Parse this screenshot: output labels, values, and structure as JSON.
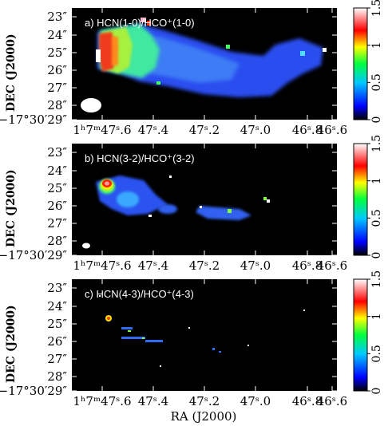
{
  "chart_data": [
    {
      "type": "heatmap",
      "title": "a) HCN(1-0)/HCO⁺(1-0)",
      "ylabel": "DEC (J2000)",
      "xlabel": "",
      "y_ticks": [
        "23″",
        "24″",
        "25″",
        "26″",
        "27″",
        "28″",
        "−17°30′29″"
      ],
      "x_ticks": [
        "1ʰ7ᵐ47ˢ.6",
        "47ˢ.4",
        "47ˢ.2",
        "47ˢ.0",
        "46ˢ.8",
        "46ˢ.6"
      ],
      "colorbar_ticks": [
        "0",
        "0.5",
        "1",
        "1.5"
      ],
      "colorbar_range": [
        0,
        1.5
      ],
      "beam": "large",
      "colormap": [
        "#000000",
        "#0000ff",
        "#00c8ff",
        "#00ff40",
        "#ffff00",
        "#ff0000",
        "#ffffff"
      ]
    },
    {
      "type": "heatmap",
      "title": "b) HCN(3-2)/HCO⁺(3-2)",
      "ylabel": "DEC (J2000)",
      "xlabel": "",
      "y_ticks": [
        "23″",
        "24″",
        "25″",
        "26″",
        "27″",
        "28″",
        "−17°30′29″"
      ],
      "x_ticks": [
        "1ʰ7ᵐ47ˢ.6",
        "47ˢ.4",
        "47ˢ.2",
        "47ˢ.0",
        "46ˢ.8",
        "46ˢ.6"
      ],
      "colorbar_ticks": [
        "0",
        "0.5",
        "1",
        "1.5"
      ],
      "colorbar_range": [
        0,
        1.5
      ],
      "beam": "small",
      "colormap": [
        "#000000",
        "#0000ff",
        "#00c8ff",
        "#00ff40",
        "#ffff00",
        "#ff0000",
        "#ffffff"
      ]
    },
    {
      "type": "heatmap",
      "title": "c) HCN(4-3)/HCO⁺(4-3)",
      "ylabel": "DEC (J2000)",
      "xlabel": "RA (J2000)",
      "y_ticks": [
        "23″",
        "24″",
        "25″",
        "26″",
        "27″",
        "28″",
        "−17°30′29″"
      ],
      "x_ticks": [
        "1ʰ7ᵐ47ˢ.6",
        "47ˢ.4",
        "47ˢ.2",
        "47ˢ.0",
        "46ˢ.8",
        "46ˢ.6"
      ],
      "colorbar_ticks": [
        "0",
        "0.5",
        "1",
        "1.5"
      ],
      "colorbar_range": [
        0,
        1.5
      ],
      "beam": "none",
      "colormap": [
        "#000000",
        "#0000ff",
        "#00c8ff",
        "#00ff40",
        "#ffff00",
        "#ff0000",
        "#ffffff"
      ]
    }
  ]
}
